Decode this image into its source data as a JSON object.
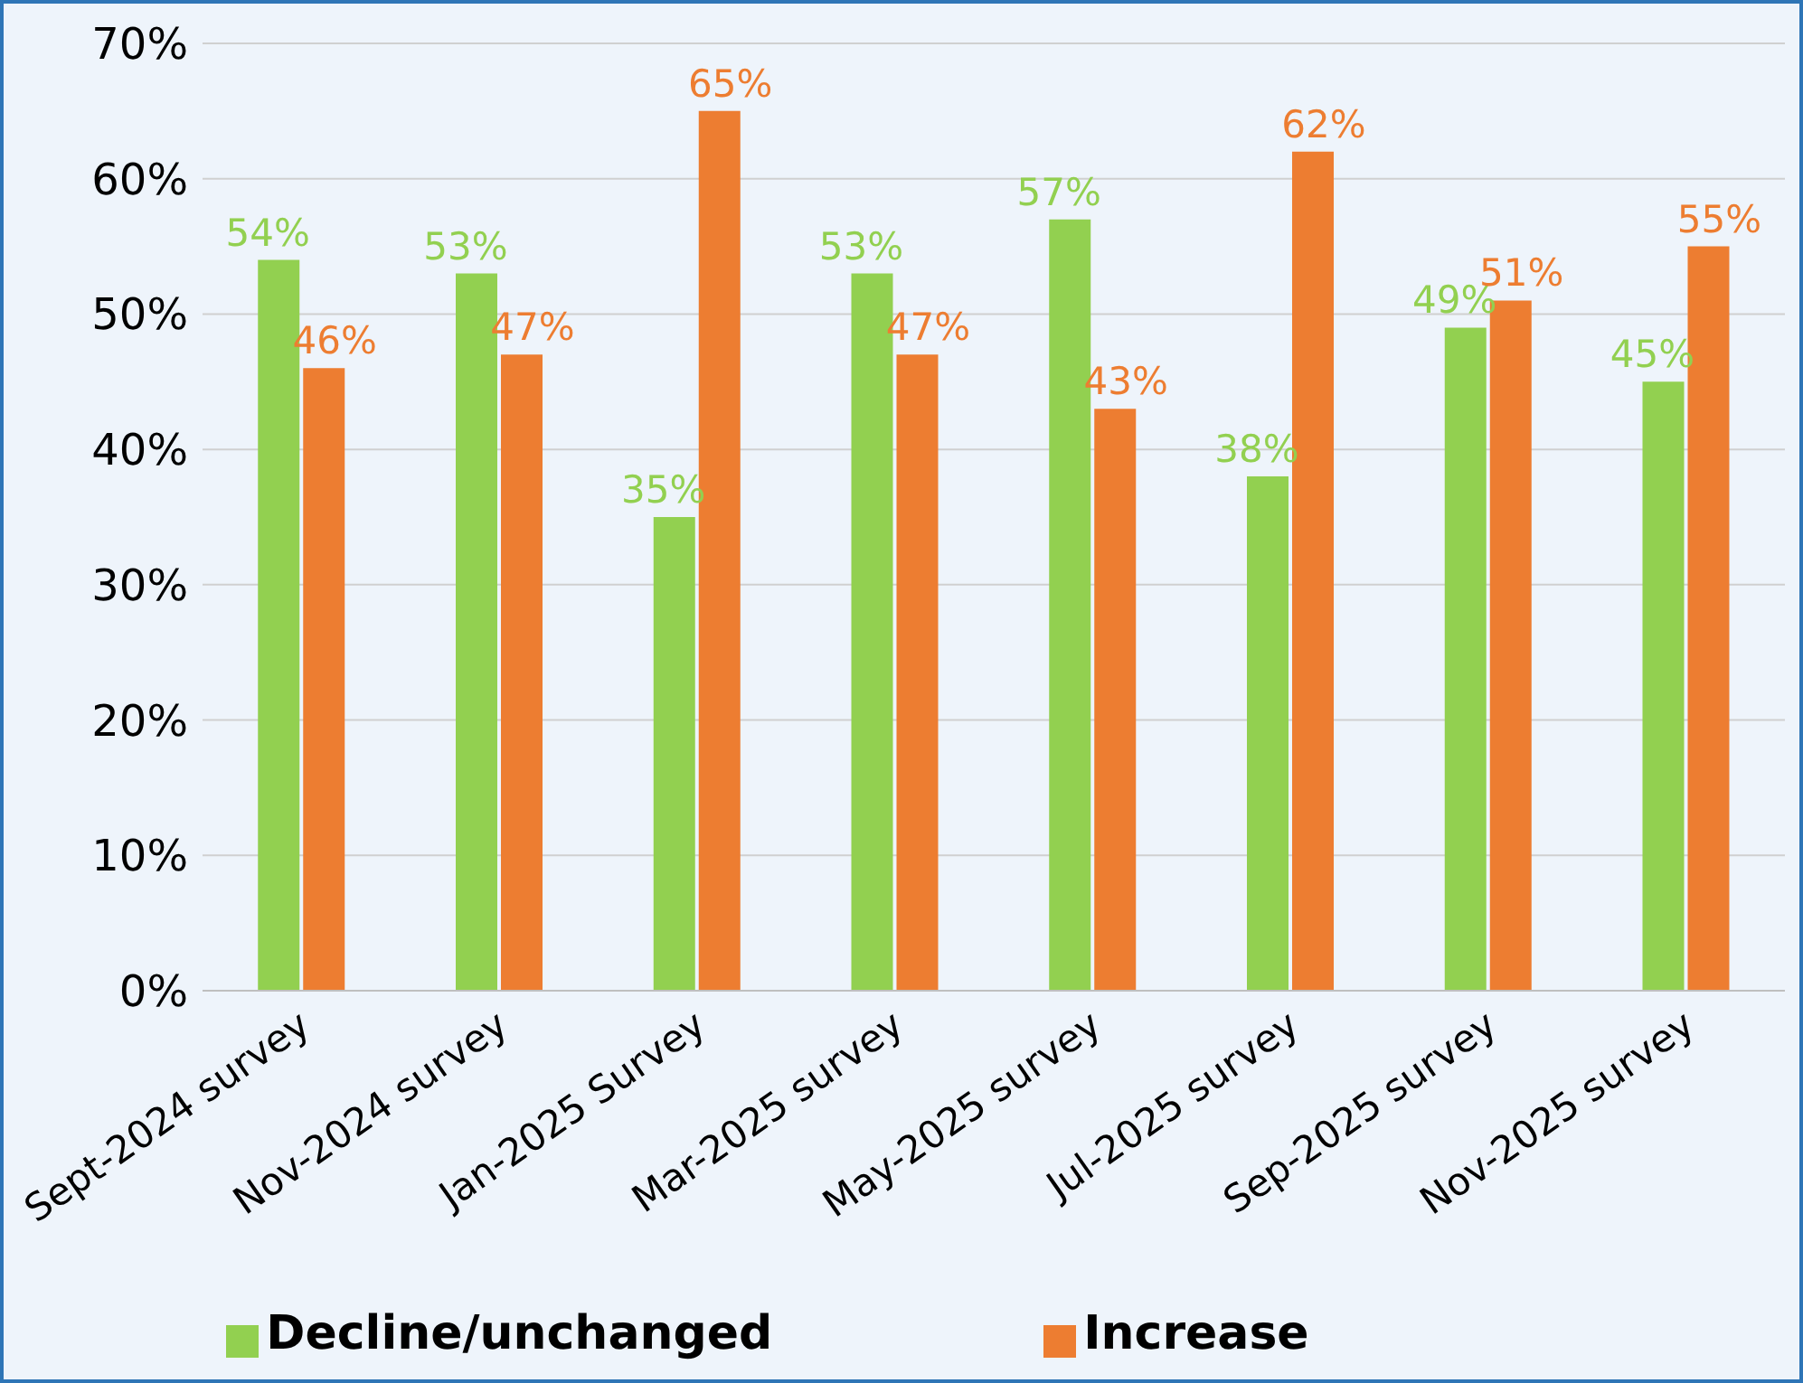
{
  "chart_data": {
    "type": "bar",
    "categories": [
      "Sept-2024 survey",
      "Nov-2024 survey",
      "Jan-2025 Survey",
      "Mar-2025 survey",
      "May-2025 survey",
      "Jul-2025 survey",
      "Sep-2025 survey",
      "Nov-2025 survey"
    ],
    "series": [
      {
        "name": "Decline/unchanged",
        "color": "#92d050",
        "values": [
          54,
          53,
          35,
          53,
          57,
          38,
          49,
          45
        ],
        "value_labels": [
          "54%",
          "53%",
          "35%",
          "53%",
          "57%",
          "38%",
          "49%",
          "45%"
        ]
      },
      {
        "name": "Increase",
        "color": "#ed7d31",
        "values": [
          46,
          47,
          65,
          47,
          43,
          62,
          51,
          55
        ],
        "value_labels": [
          "46%",
          "47%",
          "65%",
          "47%",
          "43%",
          "62%",
          "51%",
          "55%"
        ]
      }
    ],
    "ylim": [
      0,
      70
    ],
    "yticks": [
      {
        "value": 0,
        "label": "0%"
      },
      {
        "value": 10,
        "label": "10%"
      },
      {
        "value": 20,
        "label": "20%"
      },
      {
        "value": 30,
        "label": "30%"
      },
      {
        "value": 40,
        "label": "40%"
      },
      {
        "value": 50,
        "label": "50%"
      },
      {
        "value": 60,
        "label": "60%"
      },
      {
        "value": 70,
        "label": "70%"
      }
    ],
    "grid": "y",
    "legend": "bottom"
  }
}
